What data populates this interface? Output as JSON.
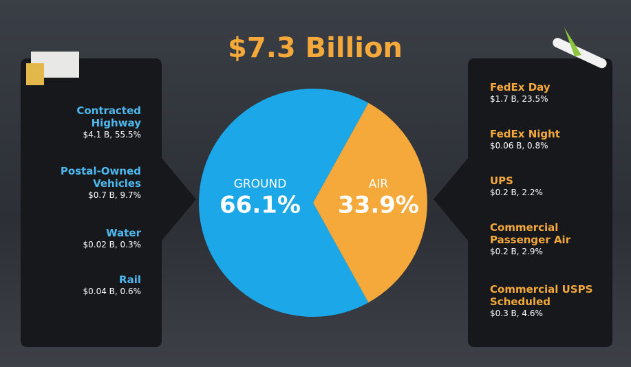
{
  "chart_data": {
    "type": "pie",
    "title": "$7.3 Billion",
    "categories": [
      "GROUND",
      "AIR"
    ],
    "values": [
      66.1,
      33.9
    ],
    "value_labels": [
      "66.1%",
      "33.9%"
    ],
    "colors": [
      "#1ba7e8",
      "#f6a93b"
    ],
    "ground_modes": [
      {
        "name": "Contracted Highway",
        "detail": "$4.1 B, 55.5%"
      },
      {
        "name": "Postal-Owned Vehicles",
        "detail": "$0.7 B, 9.7%"
      },
      {
        "name": "Water",
        "detail": "$0.02 B, 0.3%"
      },
      {
        "name": "Rail",
        "detail": "$0.04 B, 0.6%"
      }
    ],
    "air_modes": [
      {
        "name": "FedEx Day",
        "detail": "$1.7 B, 23.5%"
      },
      {
        "name": "FedEx Night",
        "detail": "$0.06 B, 0.8%"
      },
      {
        "name": "UPS",
        "detail": "$0.2 B, 2.2%"
      },
      {
        "name": "Commercial Passenger Air",
        "detail": "$0.2 B, 2.9%"
      },
      {
        "name": "Commercial USPS Scheduled",
        "detail": "$0.3 B, 4.6%"
      }
    ]
  }
}
